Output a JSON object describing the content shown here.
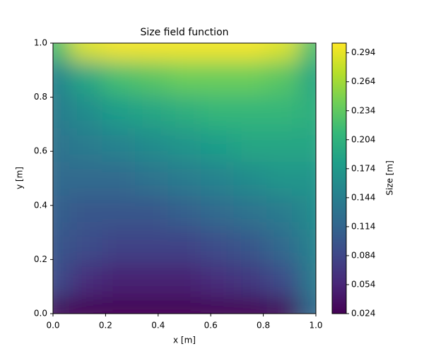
{
  "chart_data": {
    "type": "contour",
    "title": "Size field function",
    "x_label": "x [m]",
    "y_label": "y [m]",
    "colorbar_label": "Size [m]",
    "colormap": "viridis",
    "x": [
      0,
      0.125,
      0.25,
      0.375,
      0.5,
      0.625,
      0.75,
      0.875,
      1
    ],
    "y": [
      0,
      0.125,
      0.25,
      0.375,
      0.5,
      0.625,
      0.75,
      0.875,
      1
    ],
    "z": [
      [
        0.03,
        0.025,
        0.024,
        0.024,
        0.024,
        0.024,
        0.025,
        0.03,
        0.12
      ],
      [
        0.09,
        0.06,
        0.05,
        0.05,
        0.05,
        0.06,
        0.07,
        0.09,
        0.14
      ],
      [
        0.1,
        0.09,
        0.08,
        0.08,
        0.08,
        0.09,
        0.1,
        0.12,
        0.15
      ],
      [
        0.11,
        0.1,
        0.1,
        0.1,
        0.11,
        0.12,
        0.13,
        0.14,
        0.16
      ],
      [
        0.12,
        0.12,
        0.12,
        0.13,
        0.14,
        0.15,
        0.16,
        0.17,
        0.17
      ],
      [
        0.13,
        0.14,
        0.15,
        0.16,
        0.17,
        0.18,
        0.19,
        0.19,
        0.19
      ],
      [
        0.14,
        0.16,
        0.18,
        0.19,
        0.2,
        0.21,
        0.21,
        0.21,
        0.2
      ],
      [
        0.15,
        0.19,
        0.22,
        0.23,
        0.24,
        0.24,
        0.24,
        0.23,
        0.19
      ],
      [
        0.22,
        0.29,
        0.3,
        0.3,
        0.3,
        0.3,
        0.3,
        0.29,
        0.22
      ]
    ],
    "xlim": [
      0,
      1
    ],
    "ylim": [
      0,
      1
    ],
    "xticks": [
      {
        "value": 0,
        "label": "0.0"
      },
      {
        "value": 0.2,
        "label": "0.2"
      },
      {
        "value": 0.4,
        "label": "0.4"
      },
      {
        "value": 0.6,
        "label": "0.6"
      },
      {
        "value": 0.8,
        "label": "0.8"
      },
      {
        "value": 1,
        "label": "1.0"
      }
    ],
    "yticks": [
      {
        "value": 0,
        "label": "0.0"
      },
      {
        "value": 0.2,
        "label": "0.2"
      },
      {
        "value": 0.4,
        "label": "0.4"
      },
      {
        "value": 0.6,
        "label": "0.6"
      },
      {
        "value": 0.8,
        "label": "0.8"
      },
      {
        "value": 1,
        "label": "1.0"
      }
    ],
    "zlim": [
      0.024,
      0.304
    ],
    "zticks": [
      0.024,
      0.054,
      0.084,
      0.114,
      0.144,
      0.174,
      0.204,
      0.234,
      0.264,
      0.294
    ]
  }
}
